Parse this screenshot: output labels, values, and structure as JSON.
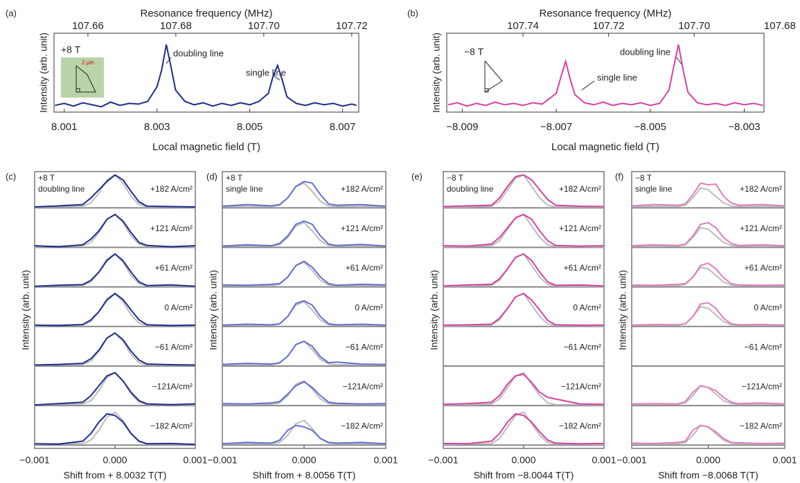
{
  "chart_data": [
    {
      "type": "line",
      "label": "(a)",
      "x2label": "Resonance frequency (MHz)",
      "xlabel": "Local magnetic field (T)",
      "ylabel": "Intensity (arb. unit)",
      "annotations": [
        "+8 T",
        "doubling line",
        "single line",
        "2 μm"
      ],
      "xlim": [
        8.00078,
        8.00735
      ],
      "xticks": [
        8.001,
        8.003,
        8.005,
        8.007
      ],
      "x2lim": [
        107.6523,
        107.7216
      ],
      "x2ticks": [
        107.66,
        107.68,
        {
          "value": 107.7,
          "label": "107.70"
        },
        107.72
      ],
      "ylim": [
        -0.08,
        1.1
      ],
      "color": "#1c2c8c",
      "x": [
        8.0008,
        8.001,
        8.0012,
        8.0014,
        8.0016,
        8.0018,
        8.002,
        8.0022,
        8.0024,
        8.0026,
        8.0028,
        8.003,
        8.0031,
        8.0032,
        8.0033,
        8.0034,
        8.0036,
        8.0038,
        8.004,
        8.0042,
        8.0044,
        8.0046,
        8.0048,
        8.005,
        8.0052,
        8.0054,
        8.0055,
        8.0056,
        8.0057,
        8.0058,
        8.006,
        8.0062,
        8.0064,
        8.0066,
        8.0068,
        8.007,
        8.0072,
        8.0073
      ],
      "values": [
        0.02,
        0.05,
        0.01,
        0.06,
        0.03,
        0.0,
        0.07,
        0.02,
        0.05,
        0.04,
        0.08,
        0.3,
        0.55,
        0.93,
        0.6,
        0.25,
        0.08,
        0.03,
        0.06,
        0.01,
        0.05,
        0.02,
        0.06,
        0.03,
        0.08,
        0.2,
        0.45,
        0.62,
        0.4,
        0.15,
        0.05,
        0.02,
        0.06,
        0.03,
        0.05,
        0.01,
        0.04,
        0.02
      ]
    },
    {
      "type": "line",
      "label": "(b)",
      "x2label": "Resonance frequency (MHz)",
      "xlabel": "Local magnetic field (T)",
      "ylabel": "Intensity (arb. unit)",
      "annotations": [
        "−8 T",
        "doubling line",
        "single line"
      ],
      "xlim": [
        -8.00933,
        -8.00258
      ],
      "xticks": [
        {
          "value": -8.009,
          "label": "−8.009"
        },
        {
          "value": -8.007,
          "label": "−8.007"
        },
        {
          "value": -8.005,
          "label": "−8.005"
        },
        {
          "value": -8.003,
          "label": "−8.003"
        }
      ],
      "x2lim": [
        107.7578,
        107.6837
      ],
      "x2ticks": [
        107.74,
        107.72,
        {
          "value": 107.7,
          "label": "107.70"
        },
        107.68
      ],
      "ylim": [
        -0.08,
        1.1
      ],
      "color": "#d6409f",
      "x": [
        -8.0093,
        -8.0091,
        -8.0089,
        -8.0087,
        -8.0085,
        -8.0083,
        -8.0081,
        -8.0079,
        -8.0077,
        -8.0075,
        -8.0073,
        -8.007,
        -8.0069,
        -8.0068,
        -8.0067,
        -8.0066,
        -8.0064,
        -8.0062,
        -8.006,
        -8.0058,
        -8.0056,
        -8.0054,
        -8.0052,
        -8.005,
        -8.0048,
        -8.0046,
        -8.0045,
        -8.0044,
        -8.0043,
        -8.0042,
        -8.004,
        -8.0038,
        -8.0036,
        -8.0034,
        -8.0032,
        -8.003,
        -8.0028,
        -8.0026
      ],
      "values": [
        0.03,
        0.06,
        0.01,
        0.05,
        0.02,
        0.07,
        0.03,
        0.05,
        0.02,
        0.06,
        0.04,
        0.2,
        0.45,
        0.68,
        0.4,
        0.18,
        0.06,
        0.03,
        0.07,
        0.02,
        0.05,
        0.03,
        0.06,
        0.02,
        0.05,
        0.25,
        0.6,
        0.93,
        0.55,
        0.22,
        0.06,
        0.03,
        0.05,
        0.02,
        0.06,
        0.03,
        0.05,
        0.02
      ]
    },
    {
      "type": "waterfall",
      "label": "(c)",
      "xlabel": "Shift from + 8.0032 T(T)",
      "ylabel": "Intensity (arb. unit)",
      "annotations": [
        "+8 T",
        "doubling line"
      ],
      "xlim": [
        -0.001,
        0.001
      ],
      "xticks": [
        {
          "value": -0.001,
          "label": "−0.001"
        },
        {
          "value": 0,
          "label": "0.000"
        },
        0.001
      ],
      "ylim": [
        -0.1,
        1.1
      ],
      "color": "#1c2c8c",
      "x": [
        -0.001,
        -0.0007,
        -0.0004,
        -0.0003,
        -0.0002,
        -0.0001,
        0,
        0.0001,
        0.0002,
        0.0003,
        0.0004,
        0.0007,
        0.001
      ],
      "reference": {
        "color": "#bbbbbb",
        "values": [
          0.02,
          0.04,
          0.05,
          0.15,
          0.45,
          0.85,
          1.0,
          0.75,
          0.35,
          0.1,
          0.03,
          0.03,
          0.02
        ]
      },
      "rows": [
        {
          "name": "+182 A/cm²",
          "values": [
            0.03,
            0.06,
            0.1,
            0.3,
            0.55,
            0.8,
            1.0,
            0.85,
            0.5,
            0.18,
            0.05,
            0.04,
            0.03
          ]
        },
        {
          "name": "+121 A/cm²",
          "values": [
            0.05,
            0.02,
            0.08,
            0.25,
            0.5,
            0.85,
            1.0,
            0.8,
            0.45,
            0.15,
            0.06,
            0.02,
            0.05
          ]
        },
        {
          "name": "+61 A/cm²",
          "values": [
            0.02,
            0.05,
            0.07,
            0.2,
            0.45,
            0.8,
            1.0,
            0.8,
            0.45,
            0.15,
            0.04,
            0.06,
            0.02
          ]
        },
        {
          "name": "0 A/cm²",
          "values": [
            0.04,
            0.03,
            0.06,
            0.2,
            0.45,
            0.8,
            1.0,
            0.82,
            0.5,
            0.2,
            0.05,
            0.03,
            0.04
          ]
        },
        {
          "name": "−61 A/cm²",
          "values": [
            0.03,
            0.05,
            0.08,
            0.22,
            0.48,
            0.85,
            1.0,
            0.8,
            0.45,
            0.18,
            0.06,
            0.04,
            0.03
          ]
        },
        {
          "name": "−121A/cm²",
          "values": [
            0.02,
            0.06,
            0.1,
            0.3,
            0.6,
            0.9,
            1.0,
            0.75,
            0.4,
            0.15,
            0.05,
            0.03,
            0.05
          ]
        },
        {
          "name": "−182 A/cm²",
          "values": [
            0.04,
            0.03,
            0.12,
            0.35,
            0.7,
            0.95,
            0.9,
            0.7,
            0.35,
            0.12,
            0.04,
            0.05,
            0.02
          ]
        }
      ]
    },
    {
      "type": "waterfall",
      "label": "(d)",
      "xlabel": "Shift from + 8.0056 T(T)",
      "ylabel": "Intensity (arb. unit)",
      "annotations": [
        "+8 T",
        "single line"
      ],
      "xlim": [
        -0.001,
        0.001
      ],
      "xticks": [
        {
          "value": -0.001,
          "label": "−0.001"
        },
        {
          "value": 0,
          "label": "0.000"
        },
        0.001
      ],
      "ylim": [
        -0.1,
        1.1
      ],
      "color": "#6070d0",
      "x": [
        -0.001,
        -0.0007,
        -0.0004,
        -0.0003,
        -0.0002,
        -0.0001,
        0,
        0.0001,
        0.0002,
        0.0003,
        0.0004,
        0.0007,
        0.001
      ],
      "reference": {
        "color": "#bbbbbb",
        "values": [
          0.04,
          0.05,
          0.04,
          0.08,
          0.3,
          0.65,
          0.75,
          0.5,
          0.2,
          0.06,
          0.04,
          0.05,
          0.04
        ]
      },
      "rows": [
        {
          "name": "+182 A/cm²",
          "values": [
            0.05,
            0.1,
            0.06,
            0.1,
            0.3,
            0.65,
            0.8,
            0.75,
            0.4,
            0.12,
            0.08,
            0.1,
            0.05
          ]
        },
        {
          "name": "+121 A/cm²",
          "values": [
            0.04,
            0.08,
            0.05,
            0.12,
            0.35,
            0.7,
            0.8,
            0.7,
            0.35,
            0.1,
            0.06,
            0.09,
            0.04
          ]
        },
        {
          "name": "+61 A/cm²",
          "values": [
            0.06,
            0.05,
            0.08,
            0.1,
            0.3,
            0.65,
            0.78,
            0.6,
            0.3,
            0.1,
            0.05,
            0.08,
            0.06
          ]
        },
        {
          "name": "0 A/cm²",
          "values": [
            0.04,
            0.07,
            0.05,
            0.08,
            0.3,
            0.7,
            0.78,
            0.65,
            0.3,
            0.08,
            0.05,
            0.07,
            0.04
          ]
        },
        {
          "name": "−61 A/cm²",
          "values": [
            0.05,
            0.08,
            0.06,
            0.1,
            0.3,
            0.65,
            0.75,
            0.6,
            0.28,
            0.1,
            0.12,
            0.06,
            0.05
          ]
        },
        {
          "name": "−121A/cm²",
          "values": [
            0.06,
            0.05,
            0.08,
            0.12,
            0.35,
            0.6,
            0.72,
            0.55,
            0.3,
            0.1,
            0.07,
            0.05,
            0.06
          ]
        },
        {
          "name": "−182 A/cm²",
          "values": [
            0.04,
            0.08,
            0.06,
            0.15,
            0.45,
            0.6,
            0.55,
            0.45,
            0.2,
            0.08,
            0.06,
            0.08,
            0.04
          ]
        }
      ]
    },
    {
      "type": "waterfall",
      "label": "(e)",
      "xlabel": "Shift from −8.0044 T(T)",
      "ylabel": "Intensity (arb. unit)",
      "annotations": [
        "−8 T",
        "doubling line"
      ],
      "xlim": [
        -0.001,
        0.001
      ],
      "xticks": [
        {
          "value": -0.001,
          "label": "−0.001"
        },
        {
          "value": 0,
          "label": "0.000"
        },
        0.001
      ],
      "ylim": [
        -0.1,
        1.1
      ],
      "color": "#d6409f",
      "x": [
        -0.001,
        -0.0007,
        -0.0004,
        -0.0003,
        -0.0002,
        -0.0001,
        0,
        0.0001,
        0.0002,
        0.0003,
        0.0004,
        0.0007,
        0.001
      ],
      "reference": {
        "color": "#bbbbbb",
        "values": [
          0.02,
          0.03,
          0.05,
          0.2,
          0.55,
          0.9,
          1.0,
          0.65,
          0.3,
          0.08,
          0.03,
          0.03,
          0.02
        ]
      },
      "rows": [
        {
          "name": "+182 A/cm²",
          "values": [
            0.04,
            0.06,
            0.08,
            0.3,
            0.65,
            0.95,
            1.0,
            0.85,
            0.55,
            0.25,
            0.08,
            0.05,
            0.04
          ]
        },
        {
          "name": "+121 A/cm²",
          "values": [
            0.05,
            0.04,
            0.1,
            0.3,
            0.6,
            0.9,
            1.0,
            0.85,
            0.5,
            0.2,
            0.06,
            0.04,
            0.05
          ]
        },
        {
          "name": "+61 A/cm²",
          "values": [
            0.03,
            0.06,
            0.08,
            0.25,
            0.55,
            0.9,
            1.0,
            0.8,
            0.45,
            0.15,
            0.05,
            0.06,
            0.03
          ]
        },
        {
          "name": "0 A/cm²",
          "values": [
            0.04,
            0.05,
            0.07,
            0.25,
            0.55,
            0.9,
            1.0,
            0.8,
            0.5,
            0.18,
            0.05,
            0.04,
            0.04
          ]
        },
        {
          "name": "−61 A/cm²",
          "values": [
            null,
            null,
            null,
            null,
            null,
            null,
            null,
            null,
            null,
            null,
            null,
            null,
            null
          ]
        },
        {
          "name": "−121A/cm²",
          "values": [
            0.04,
            0.06,
            0.1,
            0.3,
            0.65,
            0.9,
            0.95,
            0.7,
            0.4,
            0.25,
            0.2,
            0.05,
            0.04
          ]
        },
        {
          "name": "−182 A/cm²",
          "values": [
            0.05,
            0.04,
            0.12,
            0.35,
            0.7,
            0.95,
            0.9,
            0.7,
            0.4,
            0.15,
            0.06,
            0.04,
            0.05
          ]
        }
      ]
    },
    {
      "type": "waterfall",
      "label": "(f)",
      "xlabel": "Shift from −8.0068 T(T)",
      "ylabel": "Intensity (arb. unit)",
      "annotations": [
        "−8 T",
        "single line"
      ],
      "xlim": [
        -0.001,
        0.001
      ],
      "xticks": [
        {
          "value": -0.001,
          "label": "−0.001"
        },
        {
          "value": 0,
          "label": "0.000"
        },
        0.001
      ],
      "ylim": [
        -0.1,
        1.1
      ],
      "color": "#e07cc0",
      "x": [
        -0.001,
        -0.0007,
        -0.0004,
        -0.0003,
        -0.0002,
        -0.0001,
        0,
        0.0001,
        0.0002,
        0.0003,
        0.0004,
        0.0007,
        0.001
      ],
      "reference": {
        "color": "#bbbbbb",
        "values": [
          0.04,
          0.05,
          0.04,
          0.08,
          0.3,
          0.6,
          0.55,
          0.35,
          0.15,
          0.06,
          0.04,
          0.05,
          0.04
        ]
      },
      "rows": [
        {
          "name": "+182 A/cm²",
          "values": [
            0.06,
            0.1,
            0.08,
            0.12,
            0.4,
            0.75,
            0.7,
            0.72,
            0.35,
            0.15,
            0.08,
            0.1,
            0.06
          ]
        },
        {
          "name": "+121 A/cm²",
          "values": [
            0.05,
            0.08,
            0.06,
            0.1,
            0.35,
            0.7,
            0.75,
            0.6,
            0.3,
            0.12,
            0.06,
            0.08,
            0.05
          ]
        },
        {
          "name": "+61 A/cm²",
          "values": [
            0.06,
            0.05,
            0.08,
            0.1,
            0.3,
            0.65,
            0.72,
            0.55,
            0.28,
            0.1,
            0.06,
            0.05,
            0.06
          ]
        },
        {
          "name": "0 A/cm²",
          "values": [
            0.04,
            0.06,
            0.05,
            0.08,
            0.3,
            0.68,
            0.72,
            0.55,
            0.25,
            0.08,
            0.05,
            0.06,
            0.04
          ]
        },
        {
          "name": "−61 A/cm²",
          "values": [
            null,
            null,
            null,
            null,
            null,
            null,
            null,
            null,
            null,
            null,
            null,
            null,
            null
          ]
        },
        {
          "name": "−121A/cm²",
          "values": [
            0.05,
            0.06,
            0.05,
            0.12,
            0.4,
            0.6,
            0.55,
            0.45,
            0.25,
            0.1,
            0.06,
            0.08,
            0.05
          ]
        },
        {
          "name": "−182 A/cm²",
          "values": [
            0.06,
            0.05,
            0.08,
            0.12,
            0.45,
            0.6,
            0.55,
            0.4,
            0.2,
            0.08,
            0.07,
            0.05,
            0.06
          ]
        }
      ]
    }
  ]
}
